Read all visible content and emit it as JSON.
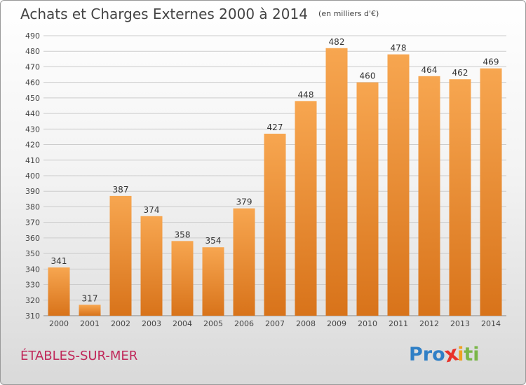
{
  "header": {
    "title": "Achats et Charges Externes 2000 à 2014",
    "subtitle": "(en milliers d'€)"
  },
  "footer": {
    "commune": "ÉTABLES-SUR-MER",
    "logo_letters": [
      {
        "ch": "P",
        "color": "#2f7fc6"
      },
      {
        "ch": "r",
        "color": "#2f7fc6"
      },
      {
        "ch": "o",
        "color": "#2f7fc6"
      },
      {
        "ch": "x",
        "color": "#e8332a"
      },
      {
        "ch": "i",
        "color": "#f0a020"
      },
      {
        "ch": "t",
        "color": "#7ab648"
      },
      {
        "ch": "i",
        "color": "#7ab648"
      }
    ]
  },
  "chart_data": {
    "type": "bar",
    "title": "Achats et Charges Externes 2000 à 2014",
    "subtitle": "(en milliers d'€)",
    "categories": [
      "2000",
      "2001",
      "2002",
      "2003",
      "2004",
      "2005",
      "2006",
      "2007",
      "2008",
      "2009",
      "2010",
      "2011",
      "2012",
      "2013",
      "2014"
    ],
    "values": [
      341,
      317,
      387,
      374,
      358,
      354,
      379,
      427,
      448,
      482,
      460,
      478,
      464,
      462,
      469
    ],
    "ylim": [
      310,
      490
    ],
    "yticks": [
      310,
      320,
      330,
      340,
      350,
      360,
      370,
      380,
      390,
      400,
      410,
      420,
      430,
      440,
      450,
      460,
      470,
      480,
      490
    ],
    "grid": true,
    "bar_color_top": "#f7a650",
    "bar_color_bottom": "#d8731a",
    "legend": "none"
  }
}
